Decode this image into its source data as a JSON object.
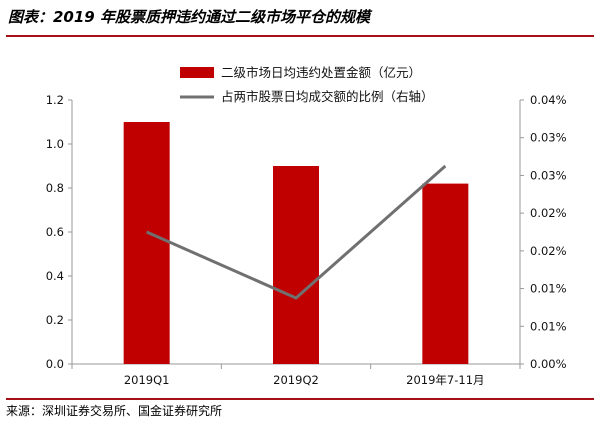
{
  "title": "图表：2019 年股票质押违约通过二级市场平仓的规模",
  "footer": "来源：深圳证券交易所、国金证券研究所",
  "chart_data": {
    "type": "bar",
    "categories": [
      "2019Q1",
      "2019Q2",
      "2019年7-11月"
    ],
    "series": [
      {
        "name": "二级市场日均违约处置金额（亿元）",
        "type": "bar",
        "axis": "left",
        "values": [
          1.1,
          0.9,
          0.82
        ],
        "color": "#c00000"
      },
      {
        "name": "占两市股票日均成交额的比例（右轴）",
        "type": "line",
        "axis": "right",
        "values": [
          0.02,
          0.01,
          0.03
        ],
        "color": "#707070"
      }
    ],
    "y_left": {
      "ylim": [
        0,
        1.2
      ],
      "ticks": [
        "0.0",
        "0.2",
        "0.4",
        "0.6",
        "0.8",
        "1.0",
        "1.2"
      ]
    },
    "y_right": {
      "ylim": [
        0,
        0.04
      ],
      "ticks": [
        "0.00%",
        "0.01%",
        "0.01%",
        "0.02%",
        "0.02%",
        "0.03%",
        "0.03%",
        "0.04%"
      ]
    },
    "grid": false,
    "legend": "top-center"
  }
}
